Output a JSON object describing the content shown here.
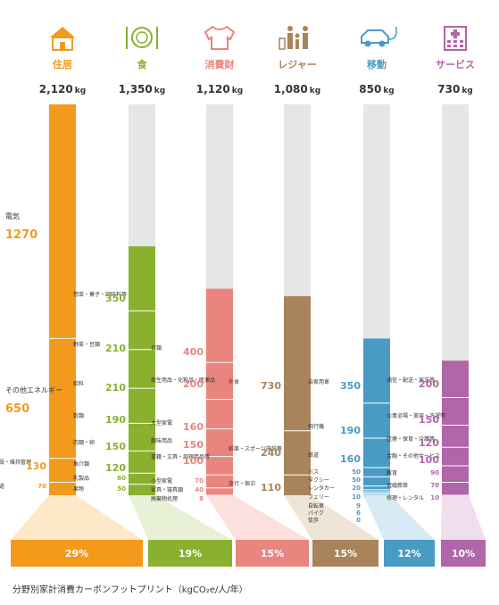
{
  "caption": "分野別家計消費カーボンフットプリント（kgCO₂e/人/年）",
  "chart_data": {
    "type": "bar",
    "ylim": [
      0,
      2120
    ],
    "unit": "kg",
    "categories": [
      {
        "name": "住居",
        "icon": "house-icon",
        "total": 2120,
        "total_label": "2,120",
        "percent": "29%",
        "color": "#f39a1c",
        "light": "#fde9c8",
        "items": [
          {
            "label": "電気",
            "value": 1270,
            "big": true
          },
          {
            "label": "その他エネルギー",
            "value": 650,
            "big": true
          },
          {
            "label": "建設・維持管理",
            "value": 130
          },
          {
            "label": "水道",
            "value": 70
          }
        ]
      },
      {
        "name": "食",
        "icon": "plate-icon",
        "total": 1350,
        "total_label": "1,350",
        "percent": "19%",
        "color": "#8ab02f",
        "light": "#e8f1d6",
        "items": [
          {
            "label": "惣菜・菓子・調味料等",
            "value": 350
          },
          {
            "label": "野菜・豆類",
            "value": 210
          },
          {
            "label": "飲料",
            "value": 210
          },
          {
            "label": "穀類",
            "value": 190
          },
          {
            "label": "肉類・卵",
            "value": 150
          },
          {
            "label": "魚介類",
            "value": 120
          },
          {
            "label": "乳製品",
            "value": 60
          },
          {
            "label": "果物",
            "value": 50
          }
        ]
      },
      {
        "name": "消費財",
        "icon": "shirt-icon",
        "total": 1120,
        "total_label": "1,120",
        "percent": "15%",
        "color": "#e9847e",
        "light": "#fbe0de",
        "items": [
          {
            "label": "衣類",
            "value": 400
          },
          {
            "label": "衛生用品・化粧品・医薬品",
            "value": 200
          },
          {
            "label": "大型家電",
            "value": 160
          },
          {
            "label": "趣味用品",
            "value": 150
          },
          {
            "label": "書籍・文具・調理用品等",
            "value": 100
          },
          {
            "label": "小型家電",
            "value": 70
          },
          {
            "label": "家具・寝具類",
            "value": 40
          },
          {
            "label": "廃棄物処理",
            "value": 8
          }
        ]
      },
      {
        "name": "レジャー",
        "icon": "family-icon",
        "total": 1080,
        "total_label": "1,080",
        "percent": "15%",
        "color": "#a9845a",
        "light": "#eee4d7",
        "items": [
          {
            "label": "外食",
            "value": 730
          },
          {
            "label": "娯楽・スポーツ施設等",
            "value": 240
          },
          {
            "label": "旅行・宿泊",
            "value": 110
          }
        ]
      },
      {
        "name": "移動",
        "icon": "car-icon",
        "total": 850,
        "total_label": "850",
        "percent": "12%",
        "color": "#4a9bc4",
        "light": "#d8ebf4",
        "items": [
          {
            "label": "自家用車",
            "value": 350
          },
          {
            "label": "飛行機",
            "value": 190
          },
          {
            "label": "鉄道",
            "value": 160
          },
          {
            "label": "バス",
            "value": 50
          },
          {
            "label": "タクシー",
            "value": 50
          },
          {
            "label": "レンタカー",
            "value": 20
          },
          {
            "label": "フェリー",
            "value": 10
          },
          {
            "label": "自転車",
            "value": 9
          },
          {
            "label": "バイク",
            "value": 6
          },
          {
            "label": "徒歩",
            "value": 0
          }
        ]
      },
      {
        "name": "サービス",
        "icon": "building-icon",
        "total": 730,
        "total_label": "730",
        "percent": "10%",
        "color": "#b066a8",
        "light": "#f0dded",
        "items": [
          {
            "label": "通信・配送・放送等",
            "value": 200
          },
          {
            "label": "公衆浴場・美容・洗濯等",
            "value": 150
          },
          {
            "label": "医療・保育・介護等",
            "value": 120
          },
          {
            "label": "金融・その他サービス",
            "value": 100
          },
          {
            "label": "教育",
            "value": 90
          },
          {
            "label": "冠婚葬祭",
            "value": 70
          },
          {
            "label": "修理・レンタル",
            "value": 10
          }
        ]
      }
    ]
  }
}
